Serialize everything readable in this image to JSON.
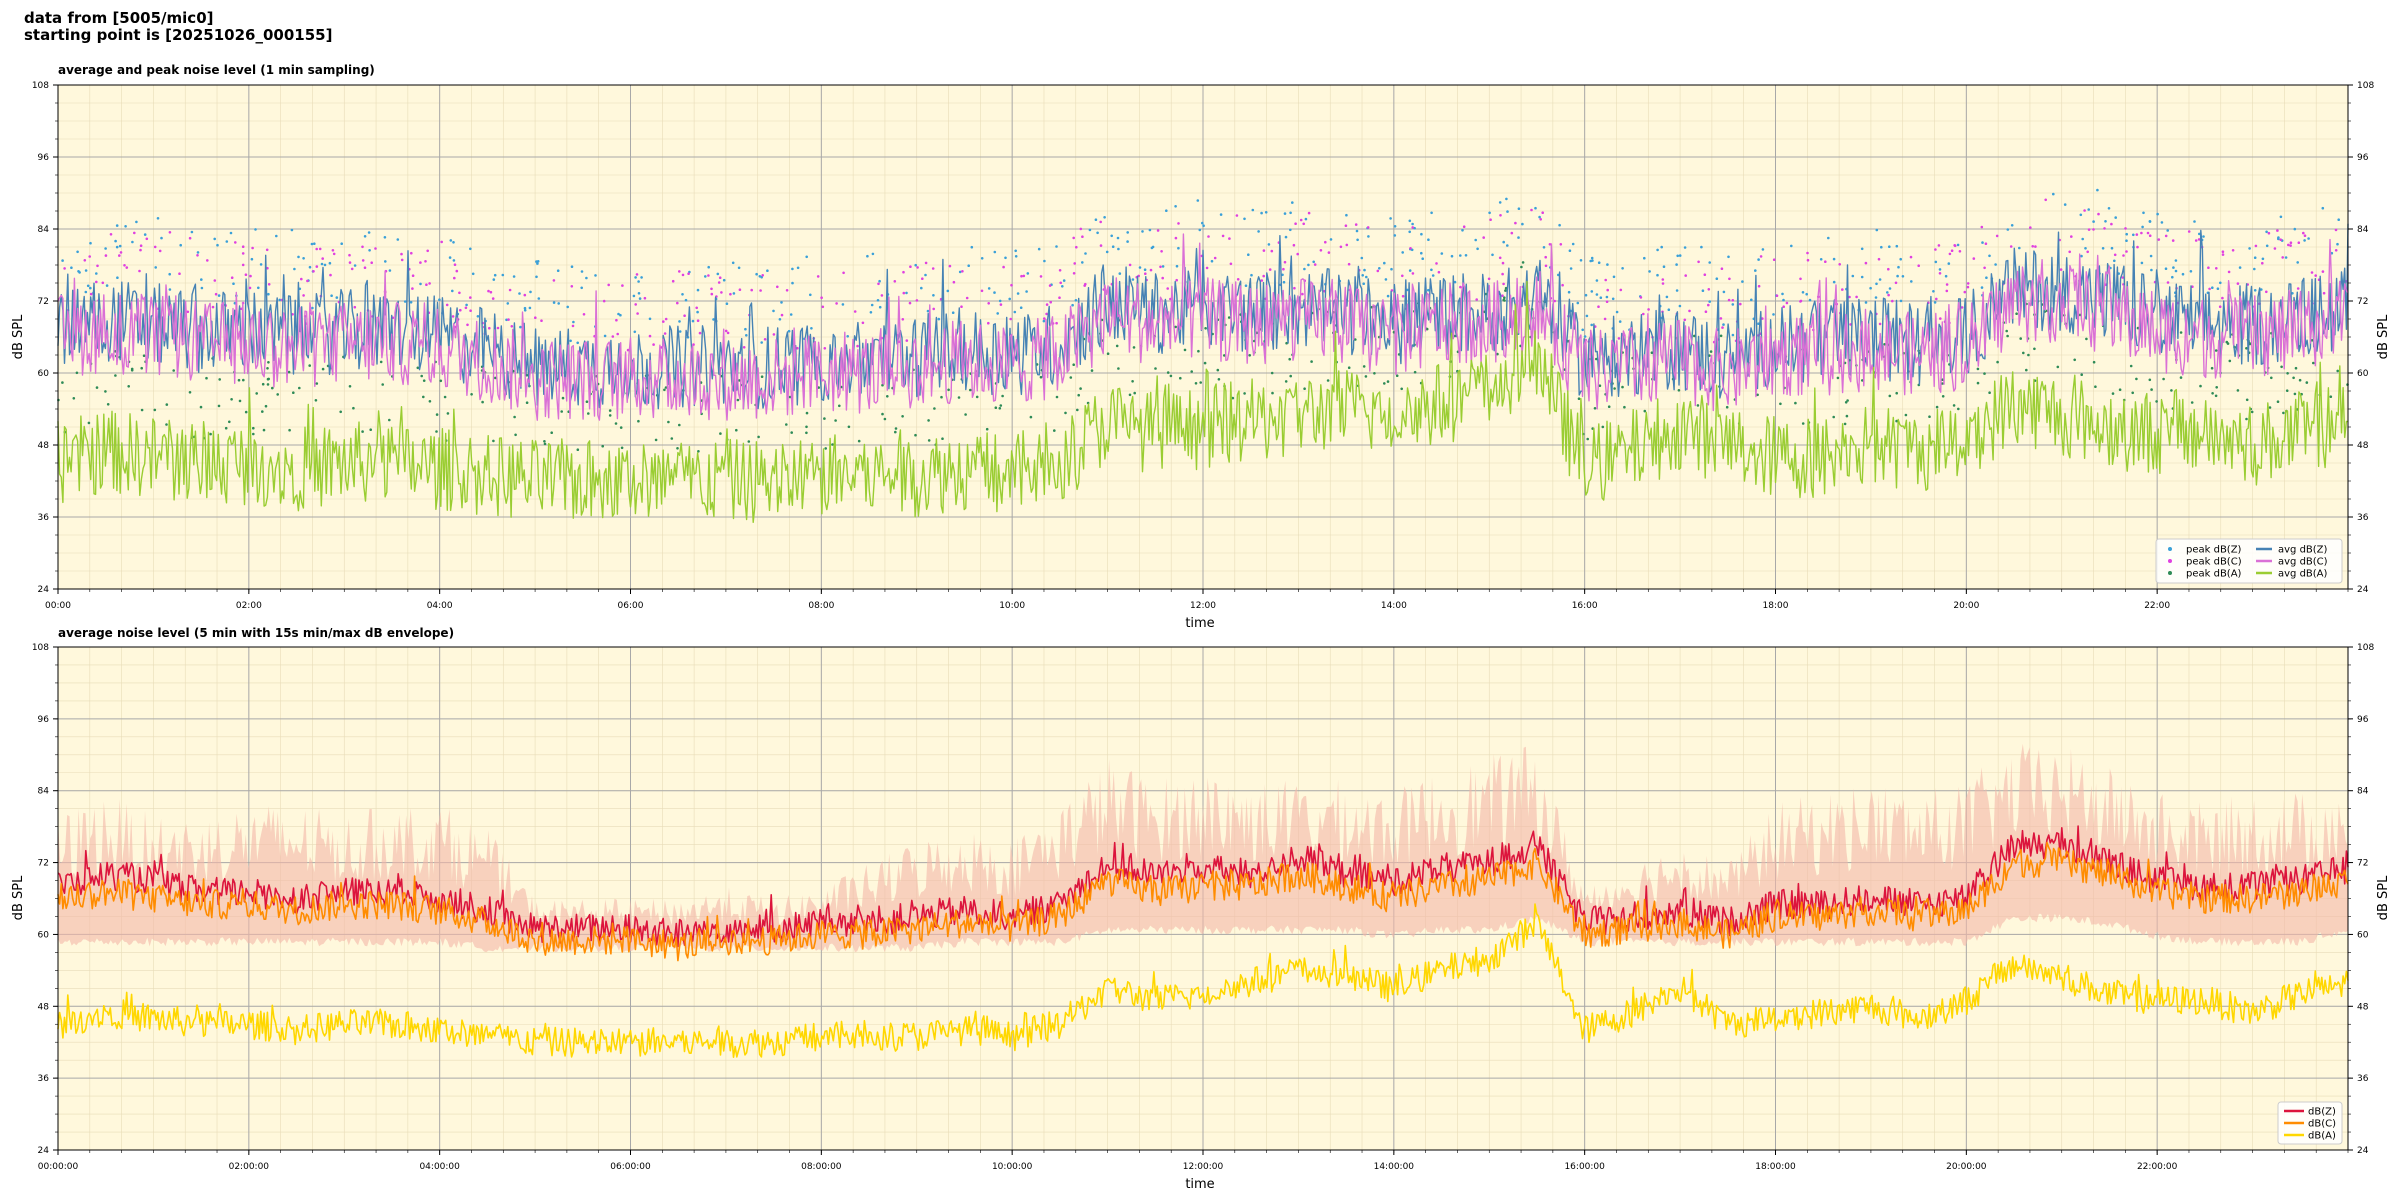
{
  "header": {
    "line1": "data from [5005/mic0]",
    "line2": "starting point is [20251026_000155]"
  },
  "chart_data": [
    {
      "type": "line",
      "title": "average and peak noise level (1 min sampling)",
      "xlabel": "time",
      "ylabel": "dB SPL",
      "ylim": [
        24,
        108
      ],
      "xlim_hours": [
        0,
        24
      ],
      "yticks": [
        24,
        36,
        48,
        60,
        72,
        84,
        96,
        108
      ],
      "xtick_labels": [
        "00:00",
        "02:00",
        "04:00",
        "06:00",
        "08:00",
        "10:00",
        "12:00",
        "14:00",
        "16:00",
        "18:00",
        "20:00",
        "22:00"
      ],
      "grid": true,
      "legend_position": "lower-right",
      "legend": [
        {
          "label": "peak dB(Z)",
          "kind": "marker",
          "color": "#3aa0d8"
        },
        {
          "label": "peak dB(C)",
          "kind": "marker",
          "color": "#e040e0"
        },
        {
          "label": "peak dB(A)",
          "kind": "marker",
          "color": "#2e8b57"
        },
        {
          "label": "avg dB(Z)",
          "kind": "line",
          "color": "#4682b4"
        },
        {
          "label": "avg dB(C)",
          "kind": "line",
          "color": "#da70d6"
        },
        {
          "label": "avg dB(A)",
          "kind": "line",
          "color": "#9acd32"
        }
      ],
      "x_hours": [
        0,
        0.5,
        1,
        1.5,
        2,
        2.5,
        3,
        3.5,
        4,
        4.5,
        5,
        5.5,
        6,
        6.5,
        7,
        7.5,
        8,
        8.5,
        9,
        9.5,
        10,
        10.5,
        11,
        11.5,
        12,
        12.5,
        13,
        13.5,
        14,
        14.5,
        15,
        15.5,
        16,
        16.5,
        17,
        17.5,
        18,
        18.5,
        19,
        19.5,
        20,
        20.5,
        21,
        21.5,
        22,
        22.5,
        23,
        23.5,
        24
      ],
      "series": [
        {
          "name": "avg dB(Z)",
          "color": "#4682b4",
          "values": [
            68,
            69,
            68,
            67,
            67,
            66,
            67,
            67,
            66,
            64,
            61,
            61,
            61,
            61,
            61,
            61,
            62,
            62,
            63,
            64,
            63,
            65,
            72,
            70,
            71,
            70,
            71,
            70,
            68,
            70,
            70,
            73,
            62,
            63,
            64,
            62,
            65,
            65,
            66,
            65,
            66,
            74,
            74,
            72,
            69,
            68,
            68,
            69,
            71
          ]
        },
        {
          "name": "avg dB(C)",
          "color": "#da70d6",
          "values": [
            66,
            67,
            66,
            65,
            65,
            64,
            65,
            65,
            64,
            62,
            59,
            59,
            59,
            59,
            59,
            59,
            60,
            60,
            61,
            62,
            61,
            63,
            70,
            68,
            69,
            68,
            69,
            68,
            66,
            68,
            68,
            71,
            60,
            61,
            62,
            60,
            63,
            63,
            64,
            63,
            64,
            72,
            72,
            70,
            67,
            66,
            66,
            67,
            69
          ]
        },
        {
          "name": "avg dB(A)",
          "color": "#9acd32",
          "values": [
            45,
            47,
            46,
            45,
            45,
            44,
            45,
            45,
            44,
            43,
            42,
            42,
            42,
            42,
            42,
            42,
            43,
            43,
            43,
            44,
            43,
            45,
            52,
            50,
            51,
            52,
            53,
            54,
            53,
            55,
            57,
            62,
            44,
            47,
            51,
            48,
            46,
            46,
            48,
            47,
            49,
            55,
            53,
            51,
            50,
            50,
            48,
            50,
            52
          ]
        }
      ]
    },
    {
      "type": "line",
      "title": "average noise level (5 min with 15s min/max dB envelope)",
      "xlabel": "time",
      "ylabel": "dB SPL",
      "ylim": [
        24,
        108
      ],
      "xlim_hours": [
        0,
        24
      ],
      "yticks": [
        24,
        36,
        48,
        60,
        72,
        84,
        96,
        108
      ],
      "xtick_labels": [
        "00:00:00",
        "02:00:00",
        "04:00:00",
        "06:00:00",
        "08:00:00",
        "10:00:00",
        "12:00:00",
        "14:00:00",
        "16:00:00",
        "18:00:00",
        "20:00:00",
        "22:00:00"
      ],
      "grid": true,
      "legend_position": "lower-right",
      "legend": [
        {
          "label": "dB(Z)",
          "kind": "line",
          "color": "#dc143c"
        },
        {
          "label": "dB(C)",
          "kind": "line",
          "color": "#ff8c00"
        },
        {
          "label": "dB(A)",
          "kind": "line",
          "color": "#ffd700"
        }
      ],
      "envelope_color": "#f4b8a8",
      "x_hours": [
        0,
        0.5,
        1,
        1.5,
        2,
        2.5,
        3,
        3.5,
        4,
        4.5,
        5,
        5.5,
        6,
        6.5,
        7,
        7.5,
        8,
        8.5,
        9,
        9.5,
        10,
        10.5,
        11,
        11.5,
        12,
        12.5,
        13,
        13.5,
        14,
        14.5,
        15,
        15.5,
        16,
        16.5,
        17,
        17.5,
        18,
        18.5,
        19,
        19.5,
        20,
        20.5,
        21,
        21.5,
        22,
        22.5,
        23,
        23.5,
        24
      ],
      "envelope_min": [
        58,
        58,
        58,
        58,
        58,
        58,
        58,
        58,
        58,
        57,
        57,
        57,
        57,
        57,
        57,
        57,
        57,
        57,
        57,
        58,
        58,
        58,
        60,
        60,
        60,
        60,
        60,
        60,
        59,
        60,
        60,
        62,
        58,
        58,
        58,
        58,
        58,
        58,
        58,
        58,
        58,
        62,
        62,
        61,
        59,
        58,
        58,
        58,
        60
      ],
      "envelope_max": [
        80,
        84,
        80,
        80,
        82,
        82,
        80,
        82,
        82,
        78,
        66,
        66,
        66,
        66,
        68,
        66,
        68,
        72,
        76,
        78,
        76,
        82,
        90,
        86,
        88,
        86,
        86,
        86,
        84,
        88,
        90,
        92,
        68,
        72,
        76,
        72,
        82,
        84,
        86,
        84,
        86,
        92,
        92,
        88,
        84,
        82,
        84,
        84,
        86
      ],
      "series": [
        {
          "name": "dB(Z)",
          "color": "#dc143c",
          "values": [
            68,
            70,
            69,
            67,
            67,
            66,
            67,
            67,
            66,
            64,
            61,
            61,
            61,
            60,
            61,
            61,
            62,
            62,
            63,
            64,
            63,
            65,
            72,
            70,
            71,
            70,
            73,
            70,
            69,
            71,
            72,
            75,
            62,
            63,
            64,
            62,
            65,
            65,
            66,
            65,
            66,
            75,
            75,
            72,
            69,
            68,
            68,
            69,
            71
          ]
        },
        {
          "name": "dB(C)",
          "color": "#ff8c00",
          "values": [
            66,
            67,
            66,
            65,
            65,
            64,
            65,
            65,
            64,
            62,
            59,
            59,
            59,
            58,
            59,
            59,
            60,
            60,
            61,
            62,
            61,
            63,
            69,
            67,
            68,
            68,
            70,
            68,
            66,
            68,
            69,
            72,
            60,
            61,
            62,
            60,
            63,
            63,
            64,
            63,
            64,
            72,
            72,
            70,
            67,
            66,
            66,
            67,
            69
          ]
        },
        {
          "name": "dB(A)",
          "color": "#ffd700",
          "values": [
            45,
            47,
            46,
            45,
            45,
            44,
            45,
            45,
            44,
            43,
            42,
            42,
            42,
            42,
            42,
            42,
            43,
            43,
            43,
            44,
            43,
            45,
            51,
            49,
            50,
            52,
            54,
            53,
            51,
            54,
            56,
            62,
            44,
            47,
            51,
            45,
            46,
            47,
            48,
            46,
            49,
            55,
            53,
            50,
            49,
            49,
            47,
            50,
            52
          ]
        }
      ]
    }
  ]
}
